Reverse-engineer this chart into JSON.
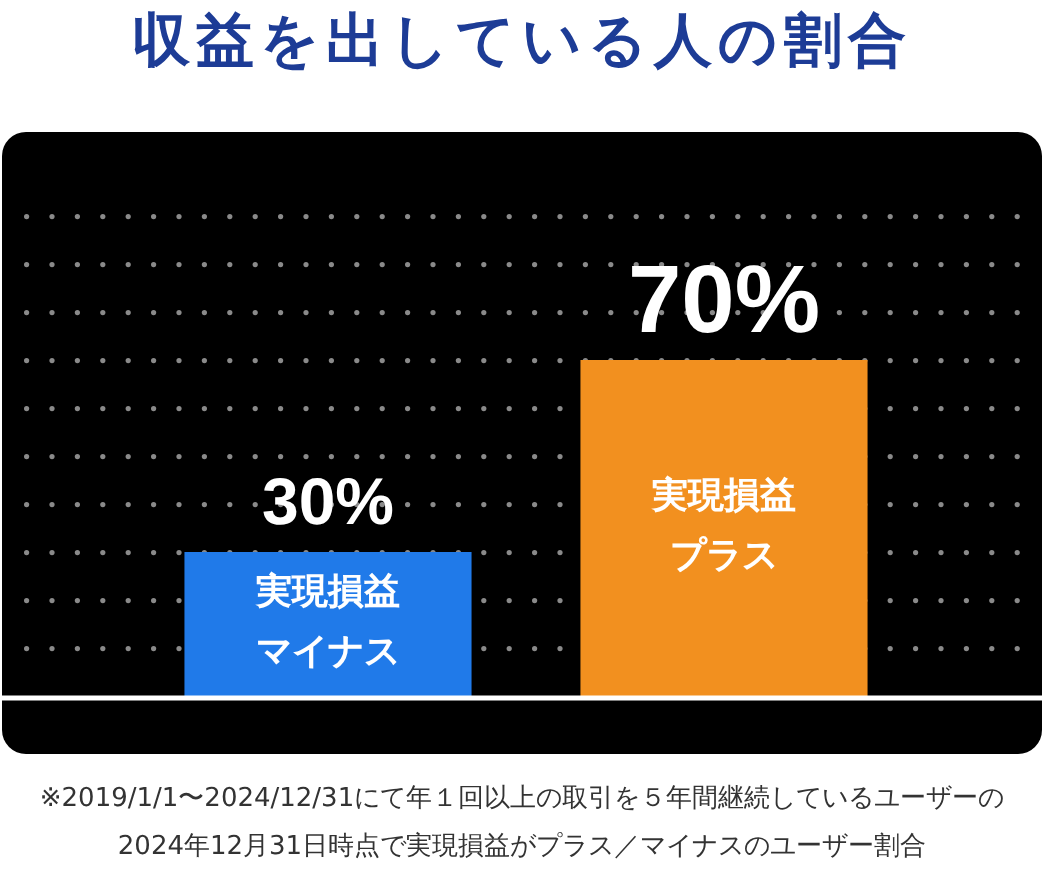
{
  "chart_data": {
    "type": "bar",
    "title": "収益を出している人の割合",
    "categories": [
      "実現損益マイナス",
      "実現損益プラス"
    ],
    "values": [
      30,
      70
    ],
    "colors": [
      "#207ae9",
      "#f2901f"
    ],
    "value_labels": [
      "30%",
      "70%"
    ],
    "tick_labels": "x",
    "annotations": [
      "※2019/1/1〜2024/12/31にて年１回以上の取引を５年間継続しているユーザーの2024年12月31日時点で実現損益がプラス／マイナスのユーザー割合"
    ]
  }
}
